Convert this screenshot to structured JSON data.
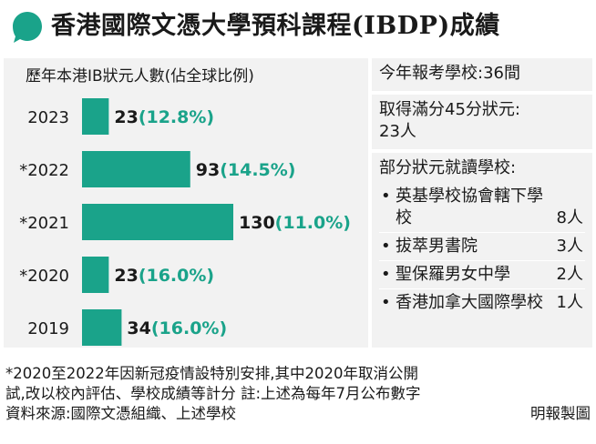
{
  "header": {
    "title": "香港國際文憑大學預科課程(IBDP)成績"
  },
  "colors": {
    "bar": "#1aa38a",
    "percent_text": "#1aa38a",
    "panel_bg": "#f2f2f2"
  },
  "chart_data": {
    "type": "bar",
    "orientation": "horizontal",
    "title": "歷年本港IB狀元人數(佔全球比例)",
    "categories": [
      "2023",
      "*2022",
      "*2021",
      "*2020",
      "2019"
    ],
    "values": [
      23,
      93,
      130,
      23,
      34
    ],
    "value_labels": [
      "23",
      "93",
      "130",
      "23",
      "34"
    ],
    "percent_labels": [
      "(12.8%)",
      "(14.5%)",
      "(11.0%)",
      "(16.0%)",
      "(16.0%)"
    ],
    "grid": false,
    "legend": "none"
  },
  "stats": {
    "schools_line": "今年報考學校:36間",
    "full_marks_line1": "取得滿分45分狀元:",
    "full_marks_line2": "23人"
  },
  "schools": {
    "heading": "部分狀元就讀學校:",
    "bullet": "•",
    "items": [
      {
        "name": "英基學校協會轄下學校",
        "count": "8人"
      },
      {
        "name": "拔萃男書院",
        "count": "3人"
      },
      {
        "name": "聖保羅男女中學",
        "count": "2人"
      },
      {
        "name": "香港加拿大國際學校",
        "count": "1人"
      }
    ]
  },
  "footnote": {
    "line1": "*2020至2022年因新冠疫情設特別安排,其中2020年取消公開",
    "line2": "試,改以校內評估、學校成績等計分 註:上述為每年7月公布數字",
    "line3": "資料來源:國際文憑組織、上述學校",
    "credit": "明報製圖"
  }
}
